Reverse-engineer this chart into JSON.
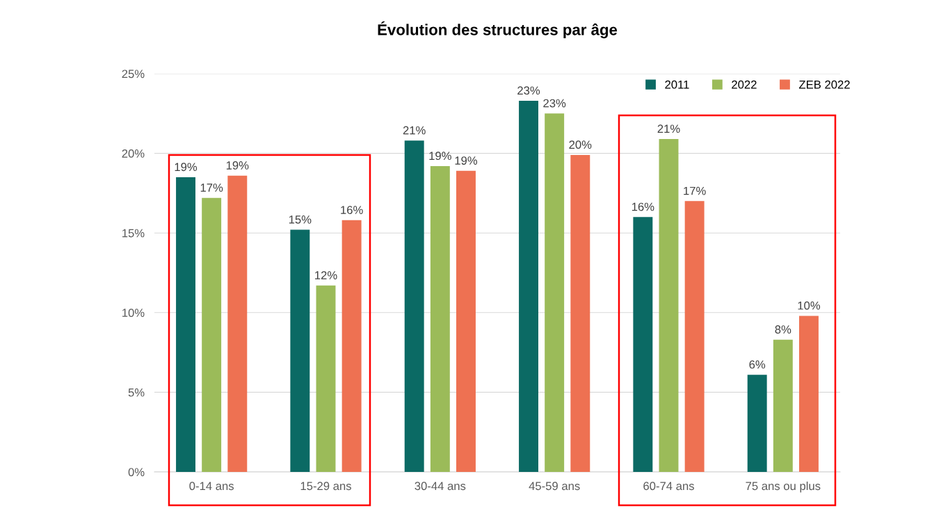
{
  "chart_data": {
    "type": "bar",
    "title": "Évolution des structures par âge",
    "categories": [
      "0-14 ans",
      "15-29 ans",
      "30-44 ans",
      "45-59 ans",
      "60-74 ans",
      "75 ans ou plus"
    ],
    "series": [
      {
        "name": "2011",
        "color": "#0b6a64",
        "values": [
          18.5,
          15.2,
          20.8,
          23.3,
          16.0,
          6.1
        ],
        "value_labels": [
          "19%",
          "15%",
          "21%",
          "23%",
          "16%",
          "6%"
        ]
      },
      {
        "name": "2022",
        "color": "#9bbb59",
        "values": [
          17.2,
          11.7,
          19.2,
          22.5,
          20.9,
          8.3
        ],
        "value_labels": [
          "17%",
          "12%",
          "19%",
          "23%",
          "21%",
          "8%"
        ]
      },
      {
        "name": "ZEB 2022",
        "color": "#ee7152",
        "values": [
          18.6,
          15.8,
          18.9,
          19.9,
          17.0,
          9.8
        ],
        "value_labels": [
          "19%",
          "16%",
          "19%",
          "20%",
          "17%",
          "10%"
        ]
      }
    ],
    "ylim": [
      0,
      25
    ],
    "yticks": [
      {
        "value": 0,
        "label": "0%"
      },
      {
        "value": 5,
        "label": "5%"
      },
      {
        "value": 10,
        "label": "10%"
      },
      {
        "value": 15,
        "label": "15%"
      },
      {
        "value": 20,
        "label": "20%"
      },
      {
        "value": 25,
        "label": "25%"
      }
    ],
    "grid": "y",
    "legend": "top right"
  }
}
